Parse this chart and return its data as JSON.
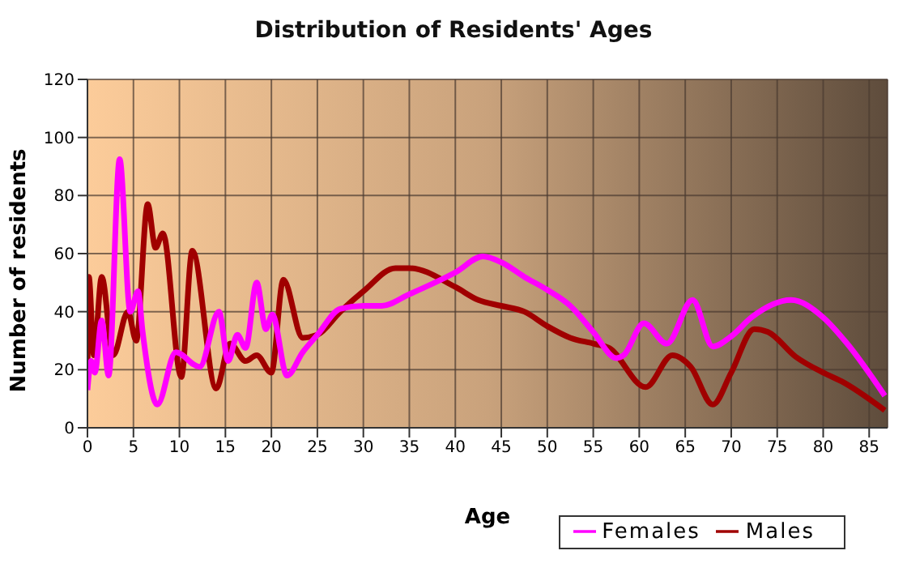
{
  "chart_data": {
    "type": "line",
    "title": "Distribution of Residents' Ages",
    "xlabel": "Age",
    "ylabel": "Number of residents",
    "xlim": [
      0,
      87
    ],
    "xticks": [
      0,
      5,
      10,
      15,
      20,
      25,
      30,
      35,
      40,
      45,
      50,
      55,
      60,
      65,
      70,
      75,
      80,
      85
    ],
    "ylim": [
      0,
      120
    ],
    "yticks": [
      0,
      20,
      40,
      60,
      80,
      100,
      120
    ],
    "grid": true,
    "legend": "bottom right",
    "marker": "none",
    "line_style": "solid",
    "series": [
      {
        "name": "Males",
        "color": "#a00000",
        "x": [
          0,
          0.15,
          0.7,
          1.55,
          2.8,
          4.4,
          5.3,
          6.55,
          7.4,
          8.2,
          10.2,
          11.4,
          14,
          15.5,
          17.2,
          18.4,
          20,
          21.3,
          23.4,
          25,
          27.5,
          30,
          33.5,
          35,
          40,
          42.5,
          45,
          47.5,
          50,
          52.5,
          55,
          56.7,
          60.7,
          63.6,
          65.6,
          68,
          70,
          72.5,
          74,
          77,
          80,
          82,
          86.7
        ],
        "values": [
          16,
          52,
          25,
          52,
          25,
          40,
          30,
          77,
          62,
          67,
          17.5,
          61,
          13.5,
          29,
          23,
          25,
          19,
          51,
          31,
          32,
          40,
          47,
          55,
          55,
          48.5,
          44,
          42,
          40,
          35,
          31,
          29,
          27.5,
          14,
          25,
          21,
          8,
          19,
          34,
          33,
          24.5,
          19,
          16,
          6
        ]
      },
      {
        "name": "Females",
        "color": "#ff00ff",
        "x": [
          0,
          0.4,
          0.8,
          1.55,
          2.3,
          3.5,
          4.65,
          5.5,
          6,
          7.6,
          9.6,
          12.2,
          14.3,
          15.3,
          16.3,
          17.2,
          18.4,
          19.4,
          20.1,
          21.7,
          23.4,
          25,
          27.5,
          30,
          32,
          35,
          40,
          43,
          45,
          47.5,
          50,
          52.5,
          55,
          57.5,
          58.3,
          60.5,
          63,
          65.8,
          68,
          70,
          72.2,
          76.5,
          80,
          82.6,
          86.7
        ],
        "values": [
          13,
          23,
          19,
          37,
          18,
          92.5,
          40,
          47,
          33,
          8,
          26,
          21,
          40,
          23,
          32,
          27.5,
          50,
          34,
          39,
          18,
          26,
          32,
          41,
          42,
          42,
          46,
          53.5,
          59,
          57,
          52,
          47.5,
          42,
          33,
          24,
          25,
          36,
          29,
          44,
          28,
          31.5,
          38,
          44,
          38,
          29,
          11
        ]
      }
    ]
  }
}
